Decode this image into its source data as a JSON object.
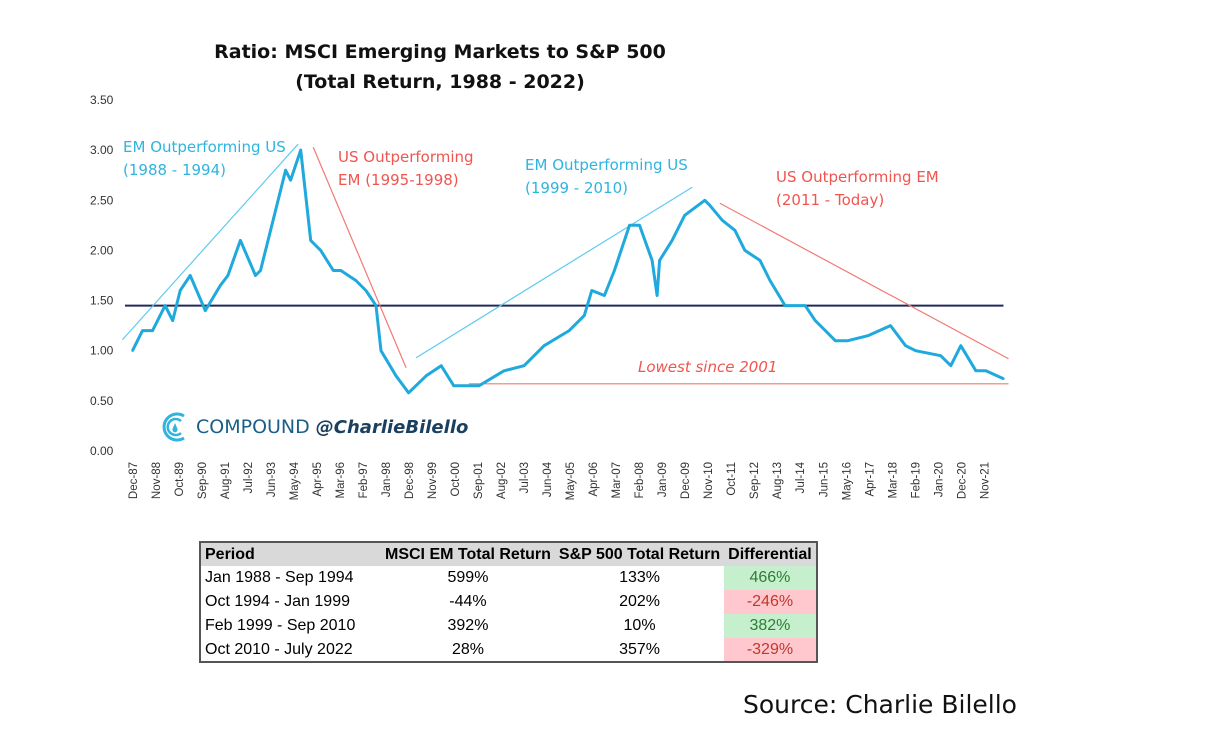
{
  "chart_data": {
    "type": "line",
    "title": "Ratio: MSCI Emerging Markets to S&P 500",
    "subtitle": "(Total Return, 1988 - 2022)",
    "xlabel": "",
    "ylabel": "",
    "ylim": [
      0,
      3.5
    ],
    "xlim": [
      1987.6,
      2022.8
    ],
    "yticks": [
      "0.00",
      "0.50",
      "1.00",
      "1.50",
      "2.00",
      "2.50",
      "3.00",
      "3.50"
    ],
    "xticks": [
      "Dec-87",
      "Nov-88",
      "Oct-89",
      "Sep-90",
      "Aug-91",
      "Jul-92",
      "Jun-93",
      "May-94",
      "Apr-95",
      "Mar-96",
      "Feb-97",
      "Jan-98",
      "Dec-98",
      "Nov-99",
      "Oct-00",
      "Sep-01",
      "Aug-02",
      "Jul-03",
      "Jun-04",
      "May-05",
      "Apr-06",
      "Mar-07",
      "Feb-08",
      "Jan-09",
      "Dec-09",
      "Nov-10",
      "Oct-11",
      "Sep-12",
      "Aug-13",
      "Jul-14",
      "Jun-15",
      "May-16",
      "Apr-17",
      "Mar-18",
      "Feb-19",
      "Jan-20",
      "Dec-20",
      "Nov-21"
    ],
    "grid": false,
    "series": [
      {
        "name": "EM/S&P 500 ratio",
        "color": "#1fa9dd",
        "x": [
          1987.9,
          1988.3,
          1988.7,
          1989.2,
          1989.5,
          1989.8,
          1990.2,
          1990.8,
          1991.4,
          1991.7,
          1992.2,
          1992.8,
          1993.0,
          1993.5,
          1994.0,
          1994.2,
          1994.6,
          1995.0,
          1995.4,
          1995.9,
          1996.2,
          1996.8,
          1997.2,
          1997.6,
          1997.8,
          1998.4,
          1998.9,
          1999.6,
          2000.2,
          2000.7,
          2001.7,
          2002.7,
          2003.5,
          2004.3,
          2005.3,
          2005.9,
          2006.2,
          2006.7,
          2007.1,
          2007.7,
          2008.1,
          2008.6,
          2008.8,
          2008.9,
          2009.4,
          2009.9,
          2010.7,
          2010.9,
          2011.4,
          2011.9,
          2012.3,
          2012.9,
          2013.3,
          2013.9,
          2014.7,
          2015.1,
          2015.5,
          2015.9,
          2016.4,
          2017.2,
          2018.1,
          2018.7,
          2019.1,
          2020.1,
          2020.5,
          2020.9,
          2021.5,
          2021.9,
          2022.6
        ],
        "y": [
          1.0,
          1.2,
          1.2,
          1.45,
          1.3,
          1.6,
          1.75,
          1.4,
          1.65,
          1.75,
          2.1,
          1.75,
          1.8,
          2.3,
          2.8,
          2.7,
          3.0,
          2.1,
          2.0,
          1.8,
          1.8,
          1.7,
          1.6,
          1.45,
          1.0,
          0.75,
          0.58,
          0.75,
          0.85,
          0.65,
          0.65,
          0.8,
          0.85,
          1.05,
          1.2,
          1.35,
          1.6,
          1.55,
          1.8,
          2.25,
          2.25,
          1.9,
          1.55,
          1.9,
          2.1,
          2.35,
          2.5,
          2.45,
          2.3,
          2.2,
          2.0,
          1.9,
          1.7,
          1.45,
          1.45,
          1.3,
          1.2,
          1.1,
          1.1,
          1.15,
          1.25,
          1.05,
          1.0,
          0.95,
          0.85,
          1.05,
          0.8,
          0.8,
          0.72
        ]
      }
    ],
    "reference_lines": [
      {
        "name": "average",
        "color": "#1f2a5a",
        "from": [
          1987.6,
          1.45
        ],
        "to": [
          2022.6,
          1.45
        ]
      },
      {
        "name": "em-trend-1988-1994",
        "color": "#5fcbee",
        "from": [
          1987.5,
          1.11
        ],
        "to": [
          1994.5,
          3.06
        ]
      },
      {
        "name": "us-trend-1995-1998",
        "color": "#f27a74",
        "from": [
          1995.1,
          3.03
        ],
        "to": [
          1998.8,
          0.83
        ]
      },
      {
        "name": "em-trend-1999-2010",
        "color": "#5fcbee",
        "from": [
          1999.2,
          0.93
        ],
        "to": [
          2010.2,
          2.63
        ]
      },
      {
        "name": "us-trend-2011-today",
        "color": "#f27a74",
        "from": [
          2011.3,
          2.47
        ],
        "to": [
          2022.8,
          0.92
        ]
      },
      {
        "name": "lowest-since-2001",
        "color": "#f27a74",
        "from": [
          2001.3,
          0.67
        ],
        "to": [
          2022.8,
          0.67
        ]
      }
    ],
    "annotations": {
      "em1_line1": "EM Outperforming US",
      "em1_line2": "(1988  - 1994)",
      "us1_line1": "US Outperforming",
      "us1_line2": "EM (1995-1998)",
      "em2_line1": "EM Outperforming US",
      "em2_line2": "(1999  - 2010)",
      "us2_line1": "US Outperforming EM",
      "us2_line2": "(2011 - Today)",
      "lowest": "Lowest since 2001"
    }
  },
  "logo": {
    "brand": "COMPOUND",
    "handle": "@CharlieBilello"
  },
  "table": {
    "headers": [
      "Period",
      "MSCI EM Total Return",
      "S&P 500 Total Return",
      "Differential"
    ],
    "rows": [
      [
        "Jan 1988 - Sep 1994",
        "599%",
        "133%",
        "466%"
      ],
      [
        "Oct 1994 - Jan 1999",
        "-44%",
        "202%",
        "-246%"
      ],
      [
        "Feb 1999 - Sep 2010",
        "392%",
        "10%",
        "382%"
      ],
      [
        "Oct 2010 - July 2022",
        "28%",
        "357%",
        "-329%"
      ]
    ]
  },
  "source": "Source: Charlie Bilello"
}
